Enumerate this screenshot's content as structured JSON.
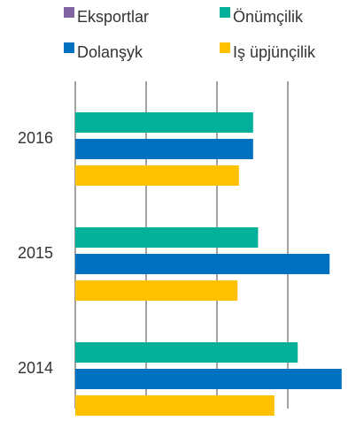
{
  "chart_data": {
    "type": "hbar",
    "categories": [
      "2016",
      "2015",
      "2014"
    ],
    "series": [
      {
        "name": "Eksportlar",
        "color": "#8064a2",
        "values": [
          0,
          0,
          0
        ]
      },
      {
        "name": "Önümçilik",
        "color": "#00b09b",
        "values": [
          2.51,
          2.58,
          3.14
        ]
      },
      {
        "name": "Dolanşyk",
        "color": "#0070c0",
        "values": [
          2.51,
          3.59,
          3.76
        ]
      },
      {
        "name": "Iş üpjünçilik",
        "color": "#ffc000",
        "values": [
          2.31,
          2.29,
          2.81
        ]
      }
    ],
    "xlim": [
      0,
      4
    ],
    "xticks": [
      0,
      1,
      2,
      3
    ],
    "grid": true,
    "legend": "top"
  }
}
